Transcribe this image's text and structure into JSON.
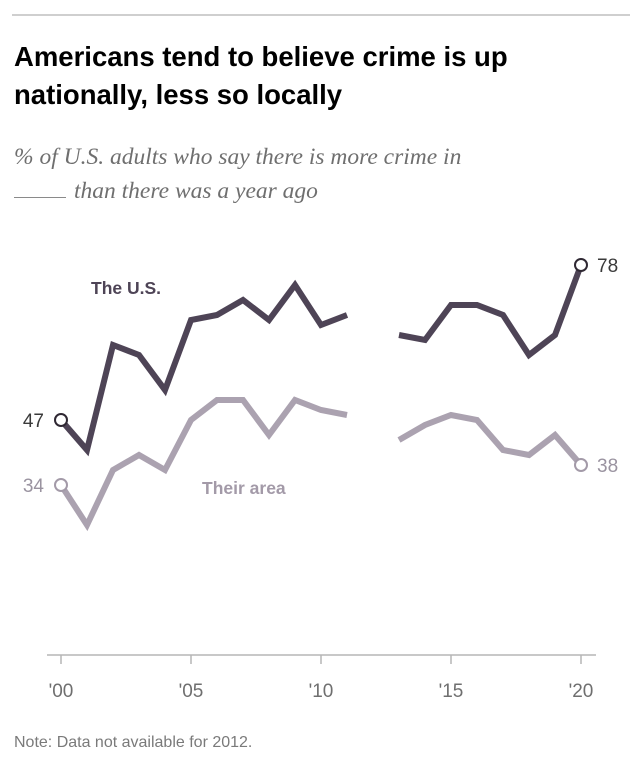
{
  "title": "Americans tend to believe crime is up nationally, less so locally",
  "subtitle_lines": [
    "% of U.S. adults who say there is more crime in",
    "than there was a year ago"
  ],
  "note": "Note: Data not available for 2012.",
  "colors": {
    "us": "#4e4456",
    "area": "#aba2b0",
    "axis": "#b5b5b5"
  },
  "chart_data": {
    "type": "line",
    "x": [
      2000,
      2001,
      2002,
      2003,
      2004,
      2005,
      2006,
      2007,
      2008,
      2009,
      2010,
      2011,
      2012,
      2013,
      2014,
      2015,
      2016,
      2017,
      2018,
      2019,
      2020
    ],
    "series": [
      {
        "name": "The U.S.",
        "values": [
          47,
          41,
          62,
          60,
          53,
          67,
          68,
          71,
          67,
          74,
          66,
          68,
          null,
          64,
          63,
          70,
          70,
          68,
          60,
          64,
          78
        ],
        "start_label": "47",
        "end_label": "78"
      },
      {
        "name": "Their area",
        "values": [
          34,
          26,
          37,
          40,
          37,
          47,
          51,
          51,
          44,
          51,
          49,
          48,
          null,
          43,
          46,
          48,
          47,
          41,
          40,
          44,
          38
        ],
        "start_label": "34",
        "end_label": "38"
      }
    ],
    "xticks": [
      2000,
      2005,
      2010,
      2015,
      2020
    ],
    "xtick_labels": [
      "'00",
      "'05",
      "'10",
      "'15",
      "'20"
    ],
    "xlim": [
      2000,
      2020
    ],
    "ylim": [
      0,
      80
    ],
    "grid": false,
    "legend": "inline labels"
  }
}
